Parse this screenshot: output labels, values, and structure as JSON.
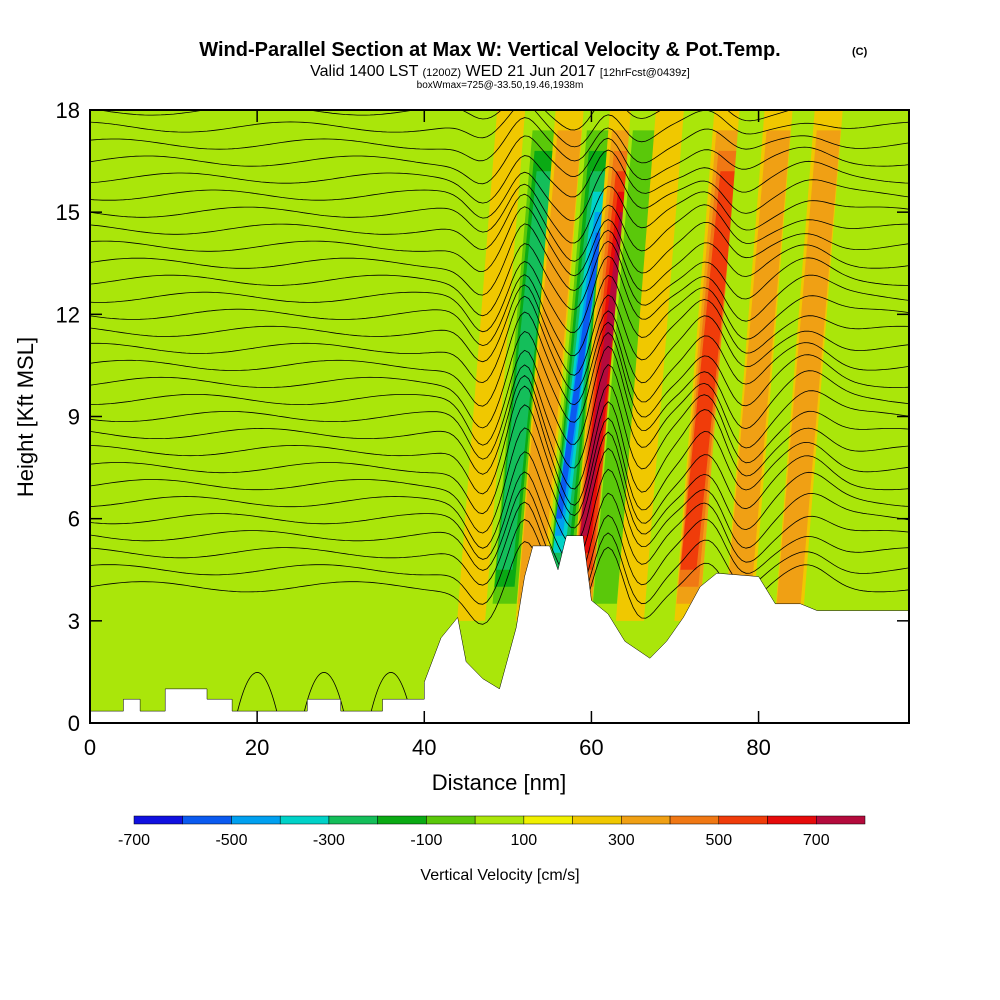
{
  "chart_data": {
    "type": "heatmap",
    "title": "Wind-Parallel Section at Max W: Vertical Velocity & Pot.Temp.",
    "copyright_mark": "(C)",
    "subtitle_valid": "Valid 1400 LST",
    "subtitle_utc": "(1200Z)",
    "subtitle_date": "WED 21 Jun 2017",
    "subtitle_fcst": "[12hrFcst@0439z]",
    "box_info": "boxWmax=725@-33.50,19.46,1938m",
    "xlabel": "Distance [nm]",
    "ylabel": "Height [Kft MSL]",
    "xlim": [
      0,
      98
    ],
    "ylim": [
      0,
      18
    ],
    "x_ticks": [
      0,
      20,
      40,
      60,
      80
    ],
    "y_ticks": [
      0,
      3,
      6,
      9,
      12,
      15,
      18
    ],
    "colorbar": {
      "title": "Vertical Velocity [cm/s]",
      "tick_labels": [
        "-700",
        "-500",
        "-300",
        "-100",
        "100",
        "300",
        "500",
        "700"
      ],
      "colors": [
        "#1010e0",
        "#0a5af0",
        "#00a0f0",
        "#00d2c8",
        "#14be5a",
        "#0aaa14",
        "#5ac80a",
        "#aae60a",
        "#f0f000",
        "#f0c800",
        "#f0a014",
        "#f07814",
        "#f03c0a",
        "#e60a0a",
        "#b40a3c"
      ]
    },
    "terrain_kft": [
      [
        0,
        0.35
      ],
      [
        4,
        0.35
      ],
      [
        4,
        0.7
      ],
      [
        6,
        0.7
      ],
      [
        6,
        0.35
      ],
      [
        9,
        0.35
      ],
      [
        9,
        1.0
      ],
      [
        14,
        1.0
      ],
      [
        14,
        0.7
      ],
      [
        17,
        0.7
      ],
      [
        17,
        0.35
      ],
      [
        26,
        0.35
      ],
      [
        26,
        0.7
      ],
      [
        30,
        0.7
      ],
      [
        30,
        0.35
      ],
      [
        35,
        0.35
      ],
      [
        35,
        0.7
      ],
      [
        40,
        0.7
      ],
      [
        40,
        1.2
      ],
      [
        42,
        2.5
      ],
      [
        44,
        3.1
      ],
      [
        45,
        1.8
      ],
      [
        47,
        1.3
      ],
      [
        49,
        1.0
      ],
      [
        51,
        2.8
      ],
      [
        52,
        4.3
      ],
      [
        53,
        5.2
      ],
      [
        55,
        5.2
      ],
      [
        56,
        4.5
      ],
      [
        57,
        5.5
      ],
      [
        59,
        5.5
      ],
      [
        60,
        3.6
      ],
      [
        62,
        3.2
      ],
      [
        64,
        2.4
      ],
      [
        67,
        1.9
      ],
      [
        69,
        2.4
      ],
      [
        71,
        3.1
      ],
      [
        73,
        4.0
      ],
      [
        75,
        4.4
      ],
      [
        80,
        4.3
      ],
      [
        82,
        3.5
      ],
      [
        85,
        3.5
      ],
      [
        87,
        3.3
      ],
      [
        98,
        3.3
      ]
    ],
    "w_field_cm_s": [
      {
        "x": 48,
        "w": 120
      },
      {
        "x": 52,
        "w": -350
      },
      {
        "x": 55,
        "w": 150
      },
      {
        "x": 58.5,
        "w": -650
      },
      {
        "x": 61.5,
        "w": 725
      },
      {
        "x": 64,
        "w": -150
      },
      {
        "x": 67,
        "w": 100
      },
      {
        "x": 74,
        "w": 400
      },
      {
        "x": 77,
        "w": -120
      },
      {
        "x": 80,
        "w": 200
      },
      {
        "x": 86,
        "w": 150
      }
    ]
  }
}
